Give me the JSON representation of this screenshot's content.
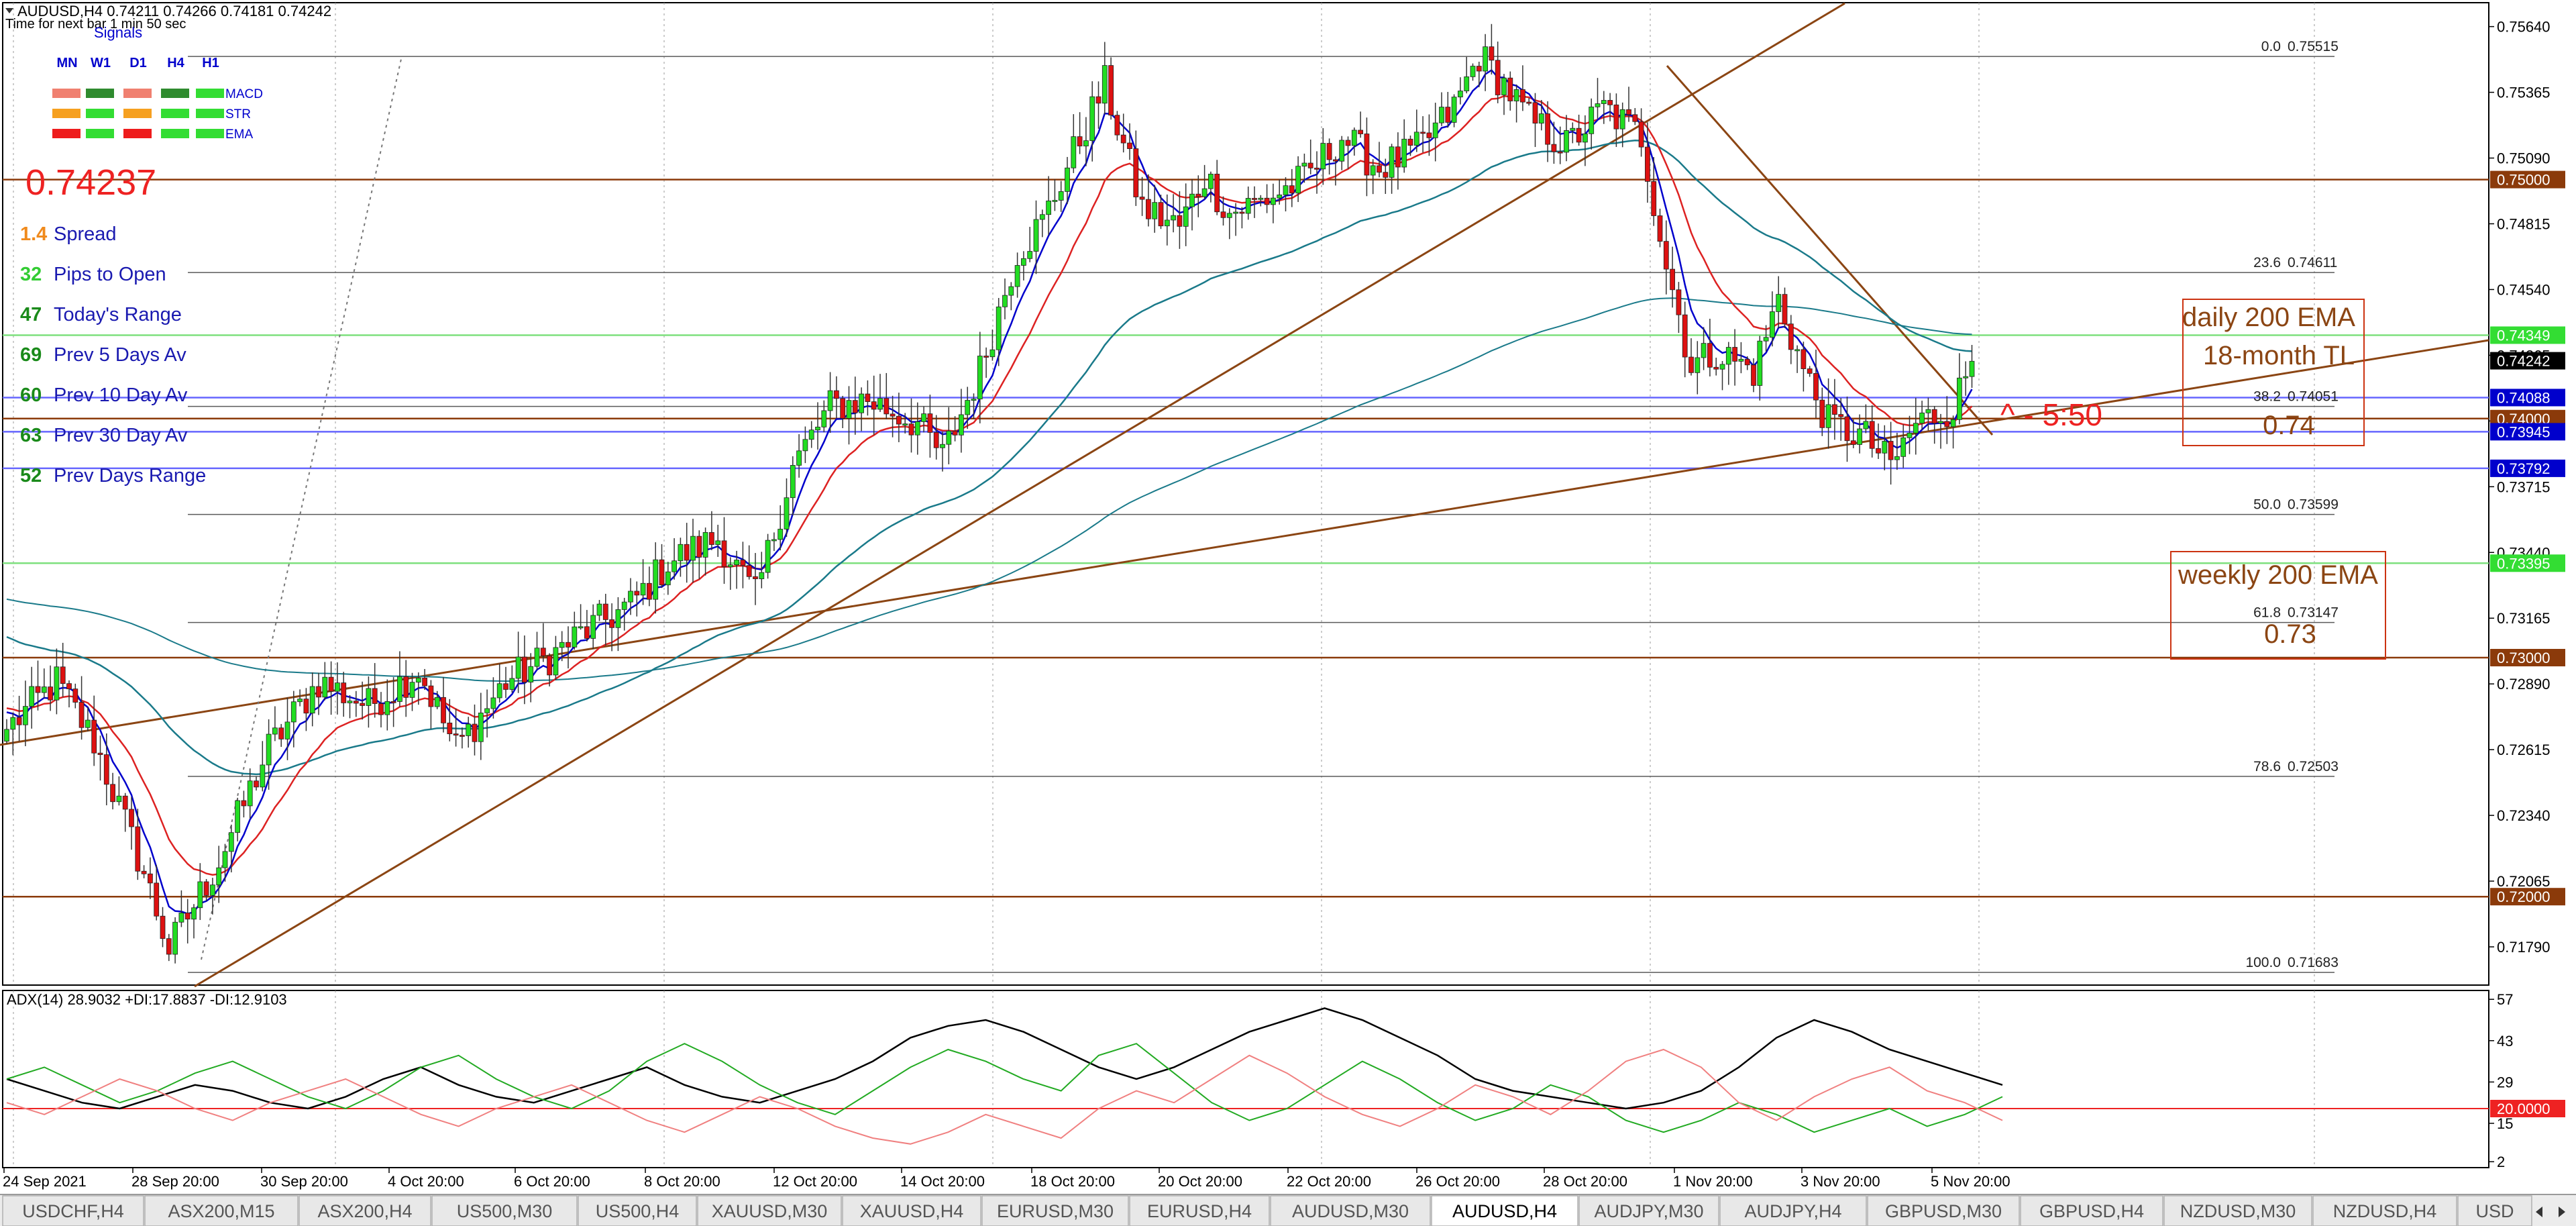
{
  "header": {
    "title": "AUDUSD,H4  0.74211 0.74266 0.74181 0.74242",
    "timer": "Time for next bar 1 min 50 sec"
  },
  "signals": {
    "title": "Signals",
    "columns": [
      "MN",
      "W1",
      "D1",
      "H4",
      "H1"
    ],
    "rows": [
      {
        "label": "MACD",
        "colors": [
          "#f08070",
          "#2e8b2e",
          "#f08070",
          "#2e8b2e",
          "#33dd33"
        ]
      },
      {
        "label": "STR",
        "colors": [
          "#f6a020",
          "#33dd33",
          "#f6a020",
          "#33dd33",
          "#33dd33"
        ]
      },
      {
        "label": "EMA",
        "colors": [
          "#ee1c1c",
          "#33dd33",
          "#ee1c1c",
          "#33dd33",
          "#33dd33"
        ]
      }
    ]
  },
  "info_panel": {
    "price": "0.74237",
    "stats": [
      {
        "value": "1.4",
        "label": "Spread",
        "value_color": "#f08a1c"
      },
      {
        "value": "32",
        "label": "Pips to Open",
        "value_color": "#33cc33"
      },
      {
        "value": "47",
        "label": "Today's Range",
        "value_color": "#1a8a1a"
      },
      {
        "value": "69",
        "label": "Prev 5 Days Av",
        "value_color": "#1a8a1a"
      },
      {
        "value": "60",
        "label": "Prev 10 Day Av",
        "value_color": "#1a8a1a"
      },
      {
        "value": "63",
        "label": "Prev 30 Day Av",
        "value_color": "#1a8a1a"
      },
      {
        "value": "52",
        "label": "Prev Days Range",
        "value_color": "#1a8a1a"
      }
    ]
  },
  "chart_data": [
    {
      "type": "candlestick",
      "symbol": "AUDUSD",
      "timeframe": "H4",
      "ylim": [
        0.7163,
        0.7574
      ],
      "y_ticks": [
        "0.75640",
        "0.75365",
        "0.75090",
        "0.74815",
        "0.74540",
        "0.74265",
        "0.73990",
        "0.73715",
        "0.73440",
        "0.73165",
        "0.72890",
        "0.72615",
        "0.72340",
        "0.72065",
        "0.71790"
      ],
      "x_ticks": [
        "24 Sep 2021",
        "28 Sep 20:00",
        "30 Sep 20:00",
        "4 Oct 20:00",
        "6 Oct 20:00",
        "8 Oct 20:00",
        "12 Oct 20:00",
        "14 Oct 20:00",
        "18 Oct 20:00",
        "20 Oct 20:00",
        "22 Oct 20:00",
        "26 Oct 20:00",
        "28 Oct 20:00",
        "1 Nov 20:00",
        "3 Nov 20:00",
        "5 Nov 20:00"
      ],
      "close_anchors": [
        [
          0,
          0.727
        ],
        [
          8,
          0.729
        ],
        [
          14,
          0.7265
        ],
        [
          22,
          0.721
        ],
        [
          26,
          0.7178
        ],
        [
          34,
          0.7215
        ],
        [
          42,
          0.7262
        ],
        [
          50,
          0.729
        ],
        [
          58,
          0.728
        ],
        [
          66,
          0.7295
        ],
        [
          72,
          0.7262
        ],
        [
          80,
          0.729
        ],
        [
          88,
          0.7302
        ],
        [
          92,
          0.731
        ],
        [
          100,
          0.7322
        ],
        [
          106,
          0.734
        ],
        [
          114,
          0.735
        ],
        [
          120,
          0.7325
        ],
        [
          126,
          0.738
        ],
        [
          132,
          0.7405
        ],
        [
          138,
          0.7408
        ],
        [
          146,
          0.7398
        ],
        [
          150,
          0.7384
        ],
        [
          156,
          0.742
        ],
        [
          162,
          0.747
        ],
        [
          166,
          0.7482
        ],
        [
          172,
          0.7517
        ],
        [
          176,
          0.754
        ],
        [
          182,
          0.7488
        ],
        [
          188,
          0.748
        ],
        [
          192,
          0.7502
        ],
        [
          196,
          0.7486
        ],
        [
          202,
          0.7492
        ],
        [
          208,
          0.75
        ],
        [
          214,
          0.7518
        ],
        [
          220,
          0.7505
        ],
        [
          226,
          0.7512
        ],
        [
          232,
          0.753
        ],
        [
          236,
          0.7552
        ],
        [
          240,
          0.754
        ],
        [
          244,
          0.7525
        ],
        [
          250,
          0.7514
        ],
        [
          256,
          0.753
        ],
        [
          262,
          0.7518
        ],
        [
          266,
          0.7465
        ],
        [
          270,
          0.7422
        ],
        [
          274,
          0.7428
        ],
        [
          280,
          0.742
        ],
        [
          284,
          0.745
        ],
        [
          288,
          0.742
        ],
        [
          292,
          0.7398
        ],
        [
          298,
          0.7392
        ],
        [
          302,
          0.738
        ],
        [
          306,
          0.7398
        ],
        [
          312,
          0.7405
        ],
        [
          315,
          0.7424
        ]
      ],
      "price_labels": [
        {
          "value": 0.75,
          "text": "0.75000",
          "bg": "#8b3a0a"
        },
        {
          "value": 0.74349,
          "text": "0.74349",
          "bg": "#33dd33"
        },
        {
          "value": 0.74242,
          "text": "0.74242",
          "bg": "#000000"
        },
        {
          "value": 0.74088,
          "text": "0.74088",
          "bg": "#0000cc"
        },
        {
          "value": 0.74,
          "text": "0.74000",
          "bg": "#8b3a0a"
        },
        {
          "value": 0.73945,
          "text": "0.73945",
          "bg": "#0000cc"
        },
        {
          "value": 0.73792,
          "text": "0.73792",
          "bg": "#0000cc"
        },
        {
          "value": 0.73395,
          "text": "0.73395",
          "bg": "#33dd33"
        },
        {
          "value": 0.73,
          "text": "0.73000",
          "bg": "#8b3a0a"
        },
        {
          "value": 0.72,
          "text": "0.72000",
          "bg": "#8b3a0a"
        }
      ],
      "horizontal_lines": [
        {
          "value": 0.75,
          "color": "#8b3a0a"
        },
        {
          "value": 0.74349,
          "color": "#7ee07e"
        },
        {
          "value": 0.74088,
          "color": "#6666ff"
        },
        {
          "value": 0.74,
          "color": "#8b3a0a"
        },
        {
          "value": 0.73945,
          "color": "#6666ff"
        },
        {
          "value": 0.73792,
          "color": "#6666ff"
        },
        {
          "value": 0.73395,
          "color": "#7ee07e"
        },
        {
          "value": 0.73,
          "color": "#8b3a0a"
        },
        {
          "value": 0.72,
          "color": "#8b3a0a"
        }
      ],
      "fibonacci": [
        {
          "level": "0.0",
          "price": "0.75515",
          "value": 0.75515
        },
        {
          "level": "23.6",
          "price": "0.74611",
          "value": 0.74611
        },
        {
          "level": "38.2",
          "price": "0.74051",
          "value": 0.74051
        },
        {
          "level": "50.0",
          "price": "0.73599",
          "value": 0.73599
        },
        {
          "level": "61.8",
          "price": "0.73147",
          "value": 0.73147
        },
        {
          "level": "78.6",
          "price": "0.72503",
          "value": 0.72503
        },
        {
          "level": "100.0",
          "price": "0.71683",
          "value": 0.71683
        }
      ],
      "annotations": [
        {
          "text": "daily 200 EMA"
        },
        {
          "text": "18-month TL"
        },
        {
          "text": "0.74"
        },
        {
          "text": "weekly 200 EMA"
        },
        {
          "text": "0.73"
        },
        {
          "text": "^ - 5:50"
        }
      ],
      "colors": {
        "up": "#22dd22",
        "down": "#dd1111",
        "ema_fast": "#0000cc",
        "ema_mid": "#dd2222",
        "ema_slow": "#1a7a8a",
        "ema_200": "#1a7a8a",
        "trendline": "#8b4513"
      }
    },
    {
      "type": "line",
      "indicator": "ADX(14) 28.9032 +DI:17.8837 -DI:12.9103",
      "ylim": [
        0,
        60
      ],
      "y_ticks": [
        "57",
        "43",
        "29",
        "15",
        "2"
      ],
      "level_label": "20.0000",
      "level": 20,
      "series": [
        {
          "color": "#000000",
          "values": [
            30,
            26,
            22,
            20,
            24,
            28,
            26,
            22,
            20,
            24,
            30,
            34,
            28,
            24,
            22,
            26,
            30,
            34,
            28,
            24,
            22,
            26,
            30,
            36,
            44,
            48,
            50,
            46,
            40,
            34,
            30,
            34,
            40,
            46,
            50,
            54,
            50,
            44,
            38,
            30,
            26,
            24,
            22,
            20,
            22,
            26,
            34,
            44,
            50,
            46,
            40,
            36,
            32,
            28
          ]
        },
        {
          "color": "#22aa22",
          "values": [
            30,
            34,
            28,
            22,
            26,
            32,
            36,
            30,
            24,
            20,
            26,
            34,
            38,
            30,
            24,
            20,
            26,
            36,
            42,
            36,
            28,
            22,
            18,
            26,
            34,
            40,
            36,
            30,
            26,
            38,
            42,
            32,
            22,
            16,
            20,
            28,
            36,
            30,
            22,
            16,
            20,
            28,
            24,
            16,
            12,
            16,
            22,
            18,
            12,
            16,
            20,
            14,
            18,
            24
          ]
        },
        {
          "color": "#f08080",
          "values": [
            22,
            18,
            24,
            30,
            26,
            20,
            16,
            22,
            26,
            30,
            24,
            18,
            14,
            20,
            24,
            28,
            22,
            16,
            12,
            18,
            24,
            20,
            14,
            10,
            8,
            12,
            18,
            14,
            10,
            20,
            26,
            22,
            30,
            38,
            32,
            24,
            18,
            14,
            20,
            28,
            24,
            18,
            26,
            36,
            40,
            34,
            22,
            16,
            24,
            30,
            34,
            26,
            22,
            16
          ]
        }
      ]
    }
  ],
  "tabs": {
    "items": [
      "USDCHF,H4",
      "ASX200,M15",
      "ASX200,H4",
      "US500,M30",
      "US500,H4",
      "XAUUSD,M30",
      "XAUUSD,H4",
      "EURUSD,M30",
      "EURUSD,H4",
      "AUDUSD,M30",
      "AUDUSD,H4",
      "AUDJPY,M30",
      "AUDJPY,H4",
      "GBPUSD,M30",
      "GBPUSD,H4",
      "NZDUSD,M30",
      "NZDUSD,H4",
      "USD"
    ],
    "active_index": 10
  }
}
